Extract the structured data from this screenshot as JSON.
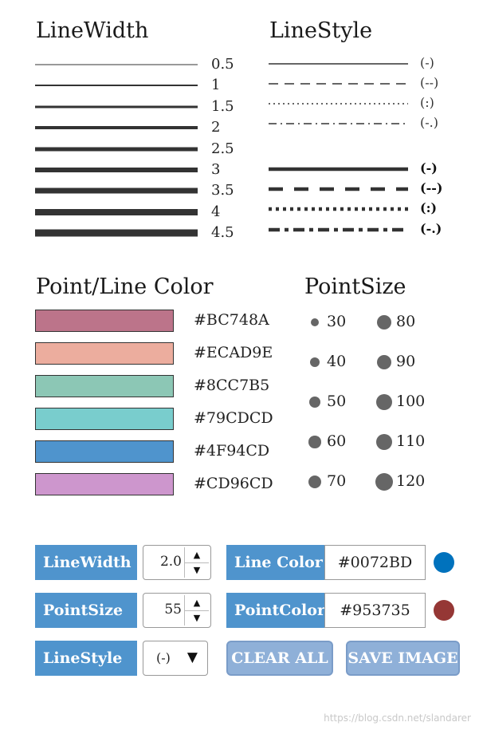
{
  "line_width": {
    "title": "LineWidth",
    "items": [
      {
        "label": "0.5",
        "width": 0.5
      },
      {
        "label": "1",
        "width": 1
      },
      {
        "label": "1.5",
        "width": 1.5
      },
      {
        "label": "2",
        "width": 2
      },
      {
        "label": "2.5",
        "width": 2.5
      },
      {
        "label": "3",
        "width": 3
      },
      {
        "label": "3.5",
        "width": 3.5
      },
      {
        "label": "4",
        "width": 4
      },
      {
        "label": "4.5",
        "width": 4.5
      }
    ]
  },
  "line_style": {
    "title": "LineStyle",
    "items": [
      {
        "label": "(-)",
        "style": "solid",
        "weight": "thin"
      },
      {
        "label": "(--)",
        "style": "dashed",
        "weight": "thin"
      },
      {
        "label": "(:)",
        "style": "dotted",
        "weight": "thin"
      },
      {
        "label": "(-.)",
        "style": "dashdot",
        "weight": "thin"
      },
      {
        "label": "(-)",
        "style": "solid",
        "weight": "thick"
      },
      {
        "label": "(--)",
        "style": "dashed",
        "weight": "thick"
      },
      {
        "label": "(:)",
        "style": "dotted",
        "weight": "thick"
      },
      {
        "label": "(-.)",
        "style": "dashdot",
        "weight": "thick"
      }
    ]
  },
  "colors": {
    "title": "Point/Line Color",
    "items": [
      {
        "hex": "#BC748A",
        "label": "#BC748A"
      },
      {
        "hex": "#ECAD9E",
        "label": "#ECAD9E"
      },
      {
        "hex": "#8CC7B5",
        "label": "#8CC7B5"
      },
      {
        "hex": "#79CDCD",
        "label": "#79CDCD"
      },
      {
        "hex": "#4F94CD",
        "label": "#4F94CD"
      },
      {
        "hex": "#CD96CD",
        "label": "#CD96CD"
      }
    ]
  },
  "point_size": {
    "title": "PointSize",
    "left": [
      {
        "label": "30",
        "size": 30
      },
      {
        "label": "40",
        "size": 40
      },
      {
        "label": "50",
        "size": 50
      },
      {
        "label": "60",
        "size": 60
      },
      {
        "label": "70",
        "size": 70
      }
    ],
    "right": [
      {
        "label": "80",
        "size": 80
      },
      {
        "label": "90",
        "size": 90
      },
      {
        "label": "100",
        "size": 100
      },
      {
        "label": "110",
        "size": 110
      },
      {
        "label": "120",
        "size": 120
      }
    ]
  },
  "controls": {
    "linewidth_label": "LineWidth",
    "linewidth_value": "2.0",
    "pointsize_label": "PointSize",
    "pointsize_value": "55",
    "linestyle_label": "LineStyle",
    "linestyle_value": "(-)",
    "line_color_label": "Line Color",
    "line_color_value": "#0072BD",
    "line_color": "#0072BD",
    "point_color_label": "PointColor",
    "point_color_value": "#953735",
    "point_color": "#953735",
    "spin_up_icon": "triangle-up",
    "spin_down_icon": "triangle-down",
    "dropdown_icon": "triangle-down",
    "clear_label": "CLEAR ALL",
    "save_label": "SAVE IMAGE"
  },
  "watermark": "https://blog.csdn.net/slandarer"
}
